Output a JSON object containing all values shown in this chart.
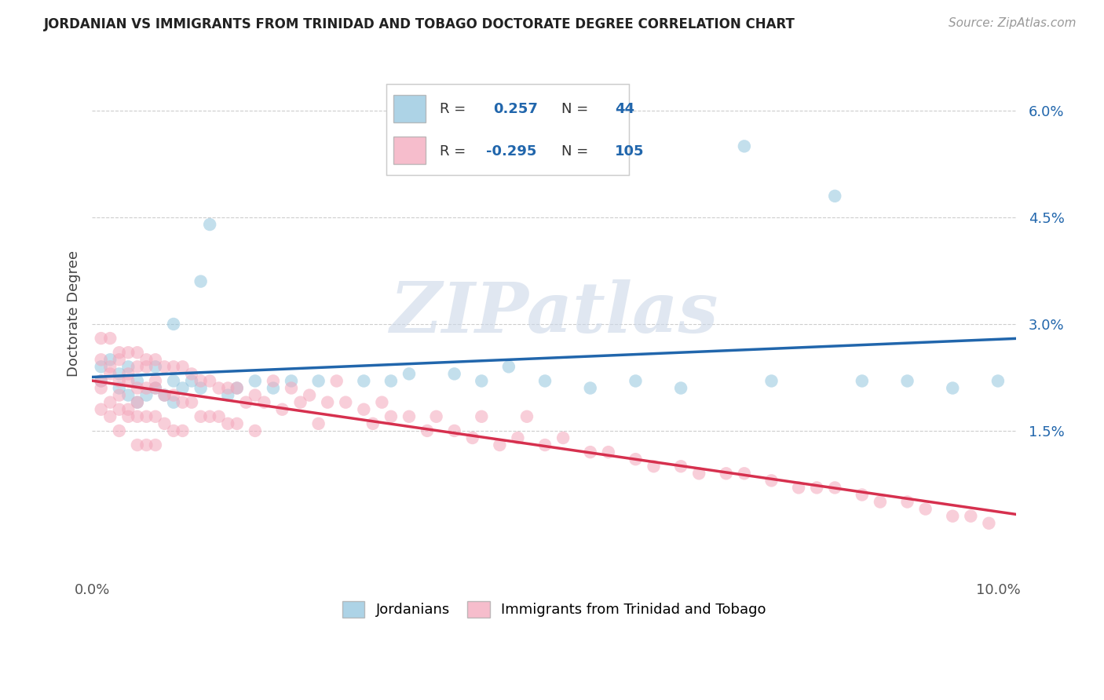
{
  "title": "JORDANIAN VS IMMIGRANTS FROM TRINIDAD AND TOBAGO DOCTORATE DEGREE CORRELATION CHART",
  "source": "Source: ZipAtlas.com",
  "ylabel": "Doctorate Degree",
  "xlim": [
    0.0,
    0.102
  ],
  "ylim": [
    -0.005,
    0.068
  ],
  "plot_ylim": [
    -0.005,
    0.068
  ],
  "yticks": [
    0.015,
    0.03,
    0.045,
    0.06
  ],
  "ytick_labels": [
    "1.5%",
    "3.0%",
    "4.5%",
    "6.0%"
  ],
  "xticks": [
    0.0,
    0.025,
    0.05,
    0.075,
    0.1
  ],
  "xtick_labels": [
    "0.0%",
    "",
    "",
    "",
    "10.0%"
  ],
  "blue_R": 0.257,
  "blue_N": 44,
  "pink_R": -0.295,
  "pink_N": 105,
  "blue_color": "#92c5de",
  "pink_color": "#f4a7bb",
  "blue_line_color": "#2166ac",
  "pink_line_color": "#d6304e",
  "watermark": "ZIPatlas",
  "legend_label_blue": "Jordanians",
  "legend_label_pink": "Immigrants from Trinidad and Tobago",
  "blue_points_x": [
    0.001,
    0.001,
    0.002,
    0.003,
    0.003,
    0.004,
    0.004,
    0.005,
    0.005,
    0.006,
    0.007,
    0.008,
    0.009,
    0.009,
    0.01,
    0.011,
    0.012,
    0.013,
    0.015,
    0.016,
    0.018,
    0.02,
    0.022,
    0.025,
    0.03,
    0.033,
    0.035,
    0.04,
    0.043,
    0.046,
    0.05,
    0.055,
    0.06,
    0.065,
    0.072,
    0.075,
    0.082,
    0.085,
    0.09,
    0.095,
    0.1,
    0.012,
    0.009,
    0.007
  ],
  "blue_points_y": [
    0.024,
    0.022,
    0.025,
    0.021,
    0.023,
    0.02,
    0.024,
    0.019,
    0.022,
    0.02,
    0.021,
    0.02,
    0.019,
    0.022,
    0.021,
    0.022,
    0.021,
    0.044,
    0.02,
    0.021,
    0.022,
    0.021,
    0.022,
    0.022,
    0.022,
    0.022,
    0.023,
    0.023,
    0.022,
    0.024,
    0.022,
    0.021,
    0.022,
    0.021,
    0.055,
    0.022,
    0.048,
    0.022,
    0.022,
    0.021,
    0.022,
    0.036,
    0.03,
    0.024
  ],
  "pink_points_x": [
    0.001,
    0.001,
    0.001,
    0.002,
    0.002,
    0.002,
    0.003,
    0.003,
    0.003,
    0.003,
    0.004,
    0.004,
    0.004,
    0.005,
    0.005,
    0.005,
    0.005,
    0.006,
    0.006,
    0.006,
    0.006,
    0.007,
    0.007,
    0.007,
    0.007,
    0.008,
    0.008,
    0.008,
    0.009,
    0.009,
    0.009,
    0.01,
    0.01,
    0.01,
    0.011,
    0.011,
    0.012,
    0.012,
    0.013,
    0.013,
    0.014,
    0.014,
    0.015,
    0.015,
    0.016,
    0.016,
    0.017,
    0.018,
    0.018,
    0.019,
    0.02,
    0.021,
    0.022,
    0.023,
    0.024,
    0.025,
    0.026,
    0.027,
    0.028,
    0.03,
    0.031,
    0.032,
    0.033,
    0.035,
    0.037,
    0.038,
    0.04,
    0.042,
    0.043,
    0.045,
    0.047,
    0.048,
    0.05,
    0.052,
    0.055,
    0.057,
    0.06,
    0.062,
    0.065,
    0.067,
    0.07,
    0.072,
    0.075,
    0.078,
    0.08,
    0.082,
    0.085,
    0.087,
    0.09,
    0.092,
    0.095,
    0.097,
    0.099,
    0.001,
    0.002,
    0.001,
    0.002,
    0.003,
    0.003,
    0.004,
    0.004,
    0.005,
    0.005,
    0.006,
    0.007
  ],
  "pink_points_y": [
    0.028,
    0.022,
    0.018,
    0.028,
    0.023,
    0.019,
    0.026,
    0.022,
    0.018,
    0.015,
    0.026,
    0.022,
    0.017,
    0.026,
    0.021,
    0.017,
    0.013,
    0.025,
    0.021,
    0.017,
    0.013,
    0.025,
    0.021,
    0.017,
    0.013,
    0.024,
    0.02,
    0.016,
    0.024,
    0.02,
    0.015,
    0.024,
    0.019,
    0.015,
    0.023,
    0.019,
    0.022,
    0.017,
    0.022,
    0.017,
    0.021,
    0.017,
    0.021,
    0.016,
    0.021,
    0.016,
    0.019,
    0.02,
    0.015,
    0.019,
    0.022,
    0.018,
    0.021,
    0.019,
    0.02,
    0.016,
    0.019,
    0.022,
    0.019,
    0.018,
    0.016,
    0.019,
    0.017,
    0.017,
    0.015,
    0.017,
    0.015,
    0.014,
    0.017,
    0.013,
    0.014,
    0.017,
    0.013,
    0.014,
    0.012,
    0.012,
    0.011,
    0.01,
    0.01,
    0.009,
    0.009,
    0.009,
    0.008,
    0.007,
    0.007,
    0.007,
    0.006,
    0.005,
    0.005,
    0.004,
    0.003,
    0.003,
    0.002,
    0.025,
    0.024,
    0.021,
    0.017,
    0.025,
    0.02,
    0.023,
    0.018,
    0.024,
    0.019,
    0.024,
    0.022
  ]
}
